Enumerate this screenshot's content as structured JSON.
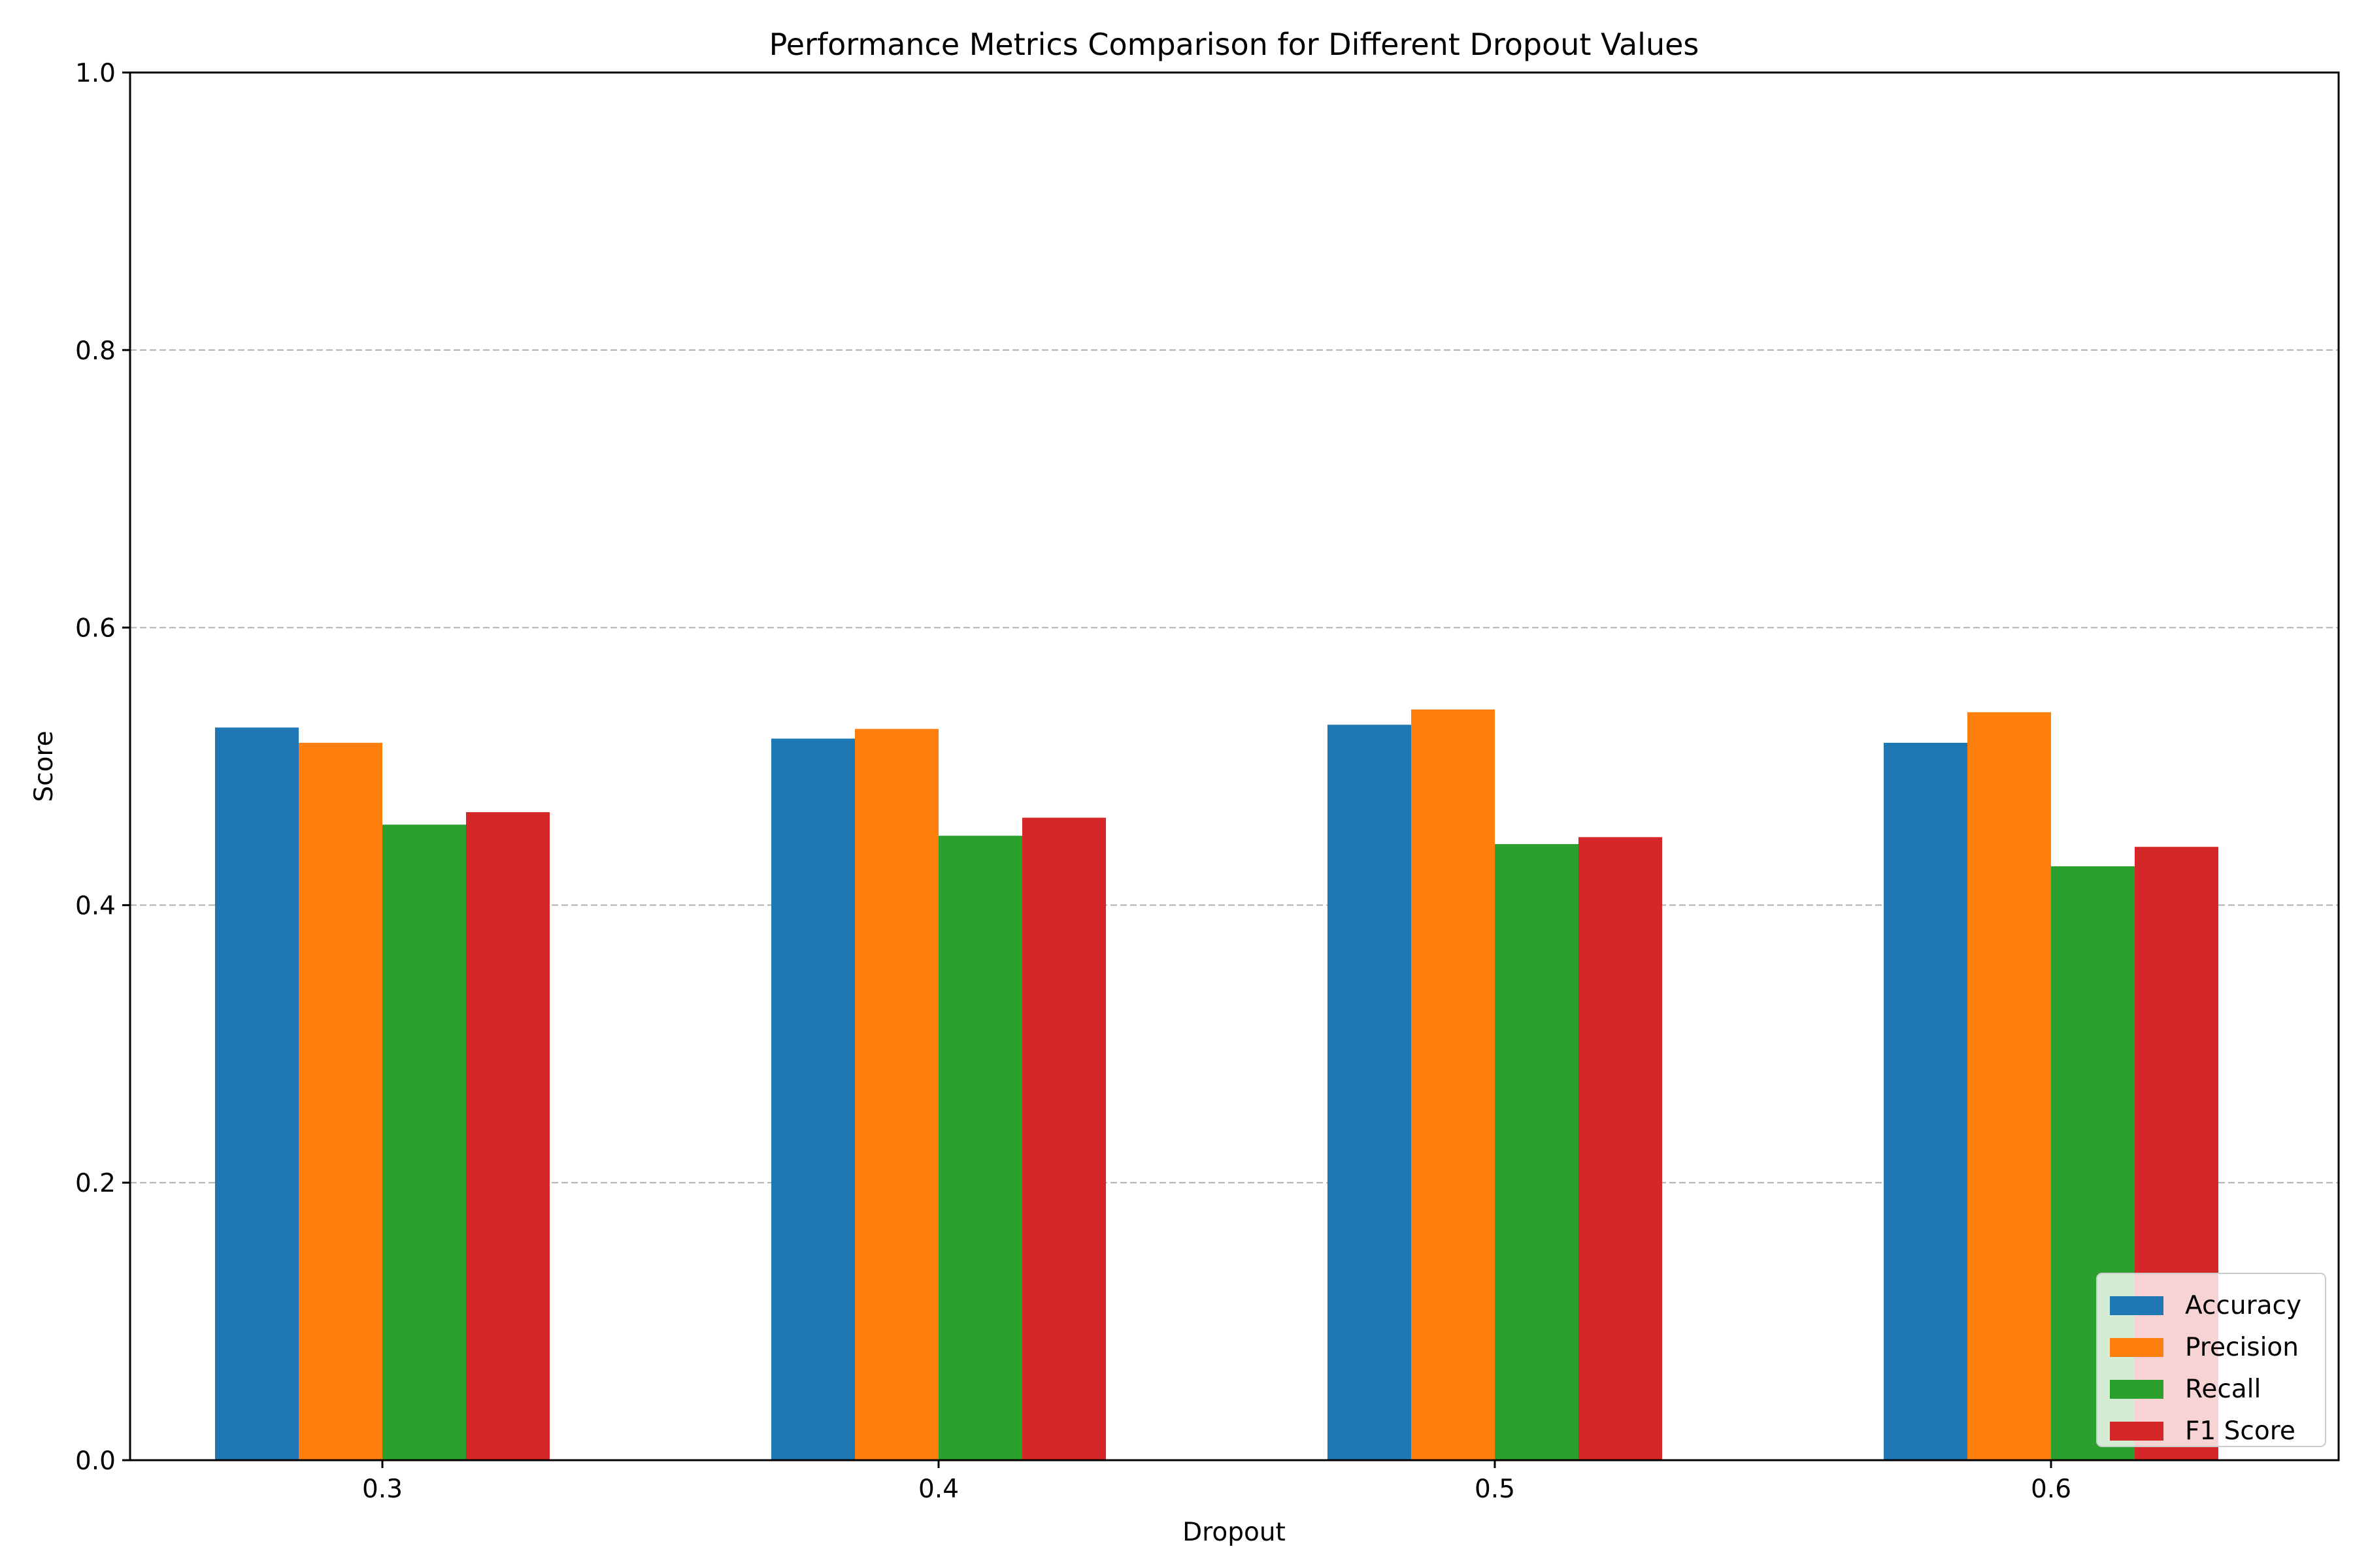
{
  "chart_data": {
    "type": "bar",
    "title": "Performance Metrics Comparison for Different Dropout Values",
    "xlabel": "Dropout",
    "ylabel": "Score",
    "categories": [
      "0.3",
      "0.4",
      "0.5",
      "0.6"
    ],
    "ylim": [
      0,
      1.0
    ],
    "yticks": [
      "0.0",
      "0.2",
      "0.4",
      "0.6",
      "0.8",
      "1.0"
    ],
    "grid": "y dashed",
    "legend_position": "lower-right",
    "series": [
      {
        "name": "Accuracy",
        "color": "#1f77b4",
        "values": [
          0.528,
          0.52,
          0.53,
          0.517
        ]
      },
      {
        "name": "Precision",
        "color": "#ff7f0e",
        "values": [
          0.517,
          0.527,
          0.541,
          0.539
        ]
      },
      {
        "name": "Recall",
        "color": "#2ca02c",
        "values": [
          0.458,
          0.45,
          0.444,
          0.428
        ]
      },
      {
        "name": "F1 Score",
        "color": "#d62728",
        "values": [
          0.467,
          0.463,
          0.449,
          0.442
        ]
      }
    ]
  }
}
